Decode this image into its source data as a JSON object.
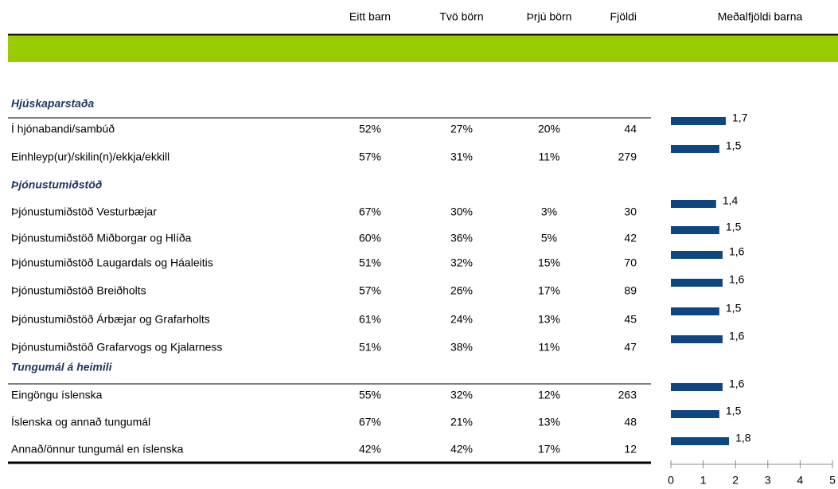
{
  "headers": [
    "Eitt barn",
    "Tvö börn",
    "Þrjú börn",
    "Fjöldi",
    "Meðalfjöldi barna"
  ],
  "sections": [
    {
      "title": "Hjúskaparstaða",
      "rows": [
        {
          "label": "Í hjónabandi/sambúð",
          "cells": [
            "52%",
            "27%",
            "20%",
            "44"
          ],
          "mean": 1.7,
          "mean_label": "1,7"
        },
        {
          "label": "Einhleyp(ur)/skilin(n)/ekkja/ekkill",
          "cells": [
            "57%",
            "31%",
            "11%",
            "279"
          ],
          "mean": 1.5,
          "mean_label": "1,5"
        }
      ]
    },
    {
      "title": "Þjónustumiðstöð",
      "rows": [
        {
          "label": "Þjónustumiðstöð Vesturbæjar",
          "cells": [
            "67%",
            "30%",
            "3%",
            "30"
          ],
          "mean": 1.4,
          "mean_label": "1,4"
        },
        {
          "label": "Þjónustumiðstöð Miðborgar og Hlíða",
          "cells": [
            "60%",
            "36%",
            "5%",
            "42"
          ],
          "mean": 1.5,
          "mean_label": "1,5"
        },
        {
          "label": "Þjónustumiðstöð Laugardals og Háaleitis",
          "cells": [
            "51%",
            "32%",
            "15%",
            "70"
          ],
          "mean": 1.6,
          "mean_label": "1,6"
        },
        {
          "label": "Þjónustumiðstöð Breiðholts",
          "cells": [
            "57%",
            "26%",
            "17%",
            "89"
          ],
          "mean": 1.6,
          "mean_label": "1,6"
        },
        {
          "label": "Þjónustumiðstöð Árbæjar og Grafarholts",
          "cells": [
            "61%",
            "24%",
            "13%",
            "45"
          ],
          "mean": 1.5,
          "mean_label": "1,5"
        },
        {
          "label": "Þjónustumiðstöð Grafarvogs og Kjalarness",
          "cells": [
            "51%",
            "38%",
            "11%",
            "47"
          ],
          "mean": 1.6,
          "mean_label": "1,6"
        }
      ]
    },
    {
      "title": "Tungumál á heimili",
      "rows": [
        {
          "label": "Eingöngu íslenska",
          "cells": [
            "55%",
            "32%",
            "12%",
            "263"
          ],
          "mean": 1.6,
          "mean_label": "1,6"
        },
        {
          "label": "Íslenska og annað tungumál",
          "cells": [
            "67%",
            "21%",
            "13%",
            "48"
          ],
          "mean": 1.5,
          "mean_label": "1,5"
        },
        {
          "label": "Annað/önnur tungumál en íslenska",
          "cells": [
            "42%",
            "42%",
            "17%",
            "12"
          ],
          "mean": 1.8,
          "mean_label": "1,8"
        }
      ]
    }
  ],
  "xlim": [
    0,
    5
  ],
  "xticks": [
    0,
    1,
    2,
    3,
    4,
    5
  ],
  "bar_color": "#0d4680"
}
